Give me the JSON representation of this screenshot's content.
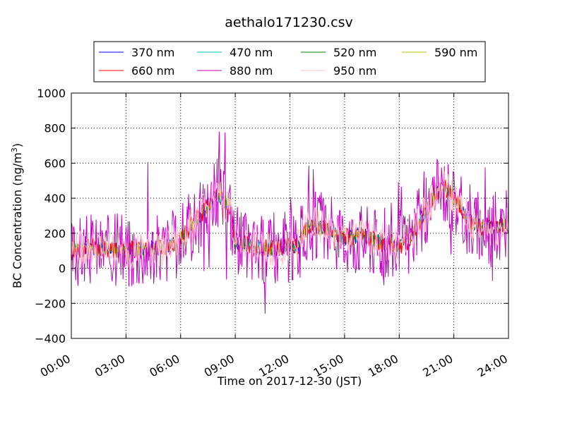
{
  "chart_data": {
    "type": "line",
    "title": "aethalo171230.csv",
    "xlabel": "Time on 2017-12-30 (JST)",
    "ylabel_main": "BC Concentration (ng/m",
    "ylabel_sup": "3",
    "ylabel_end": ")",
    "xlim": [
      0,
      24
    ],
    "ylim": [
      -400,
      1000
    ],
    "x_ticks": [
      0,
      3,
      6,
      9,
      12,
      15,
      18,
      21,
      24
    ],
    "x_tick_labels": [
      "00:00",
      "03:00",
      "06:00",
      "09:00",
      "12:00",
      "15:00",
      "18:00",
      "21:00",
      "24:00"
    ],
    "y_ticks": [
      -400,
      -200,
      0,
      200,
      400,
      600,
      800,
      1000
    ],
    "y_tick_labels": [
      "−400",
      "−200",
      "0",
      "200",
      "400",
      "600",
      "800",
      "1000"
    ],
    "grid": true,
    "legend_position": "top-center",
    "series": [
      {
        "name": "370 nm",
        "color": "#0000ff",
        "noise": 45,
        "seed": 11
      },
      {
        "name": "470 nm",
        "color": "#00bfbf",
        "noise": 40,
        "seed": 23
      },
      {
        "name": "520 nm",
        "color": "#008000",
        "noise": 40,
        "seed": 37
      },
      {
        "name": "590 nm",
        "color": "#bfbf00",
        "noise": 45,
        "seed": 41
      },
      {
        "name": "660 nm",
        "color": "#ff0000",
        "noise": 55,
        "seed": 53
      },
      {
        "name": "880 nm",
        "color": "#bf00bf",
        "noise": 210,
        "seed": 67
      },
      {
        "name": "950 nm",
        "color": "#ffc0cb",
        "noise": 110,
        "seed": 79
      }
    ],
    "baseline_profile": {
      "hours": [
        0,
        1,
        2,
        3,
        4,
        5,
        5.8,
        6.5,
        7.2,
        8,
        8.7,
        9,
        10,
        11,
        12,
        12.5,
        13,
        14,
        15,
        16,
        17,
        18,
        18.5,
        19,
        19.5,
        20,
        20.5,
        21,
        22,
        23,
        24
      ],
      "values": [
        100,
        120,
        110,
        100,
        110,
        120,
        150,
        230,
        320,
        420,
        350,
        150,
        120,
        110,
        130,
        130,
        250,
        220,
        170,
        190,
        150,
        130,
        160,
        250,
        330,
        430,
        470,
        400,
        250,
        230,
        250
      ]
    }
  }
}
